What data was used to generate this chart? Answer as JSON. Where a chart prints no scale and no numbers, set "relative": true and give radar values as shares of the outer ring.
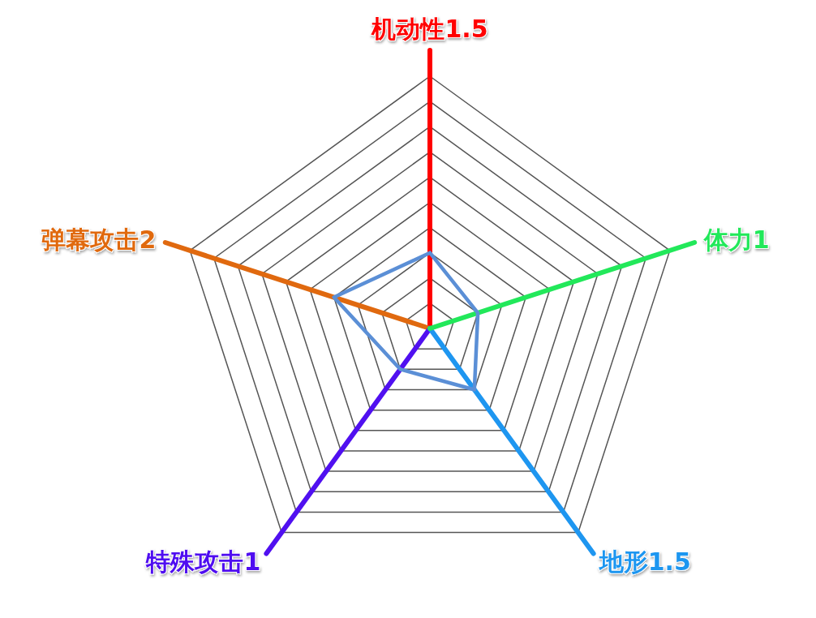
{
  "chart_data": {
    "type": "radar",
    "categories": [
      "机动性1.5",
      "体力1",
      "地形1.5",
      "特殊攻击1",
      "弹幕攻击2"
    ],
    "colors": [
      "#ff0000",
      "#22e85a",
      "#1e96f0",
      "#5010f0",
      "#e0690f"
    ],
    "relative": true,
    "grid": true,
    "marker": "none",
    "series": [
      {
        "color": "#5b8fd6",
        "values": [
          0.3,
          0.2,
          0.3,
          0.2,
          0.4
        ]
      }
    ]
  }
}
